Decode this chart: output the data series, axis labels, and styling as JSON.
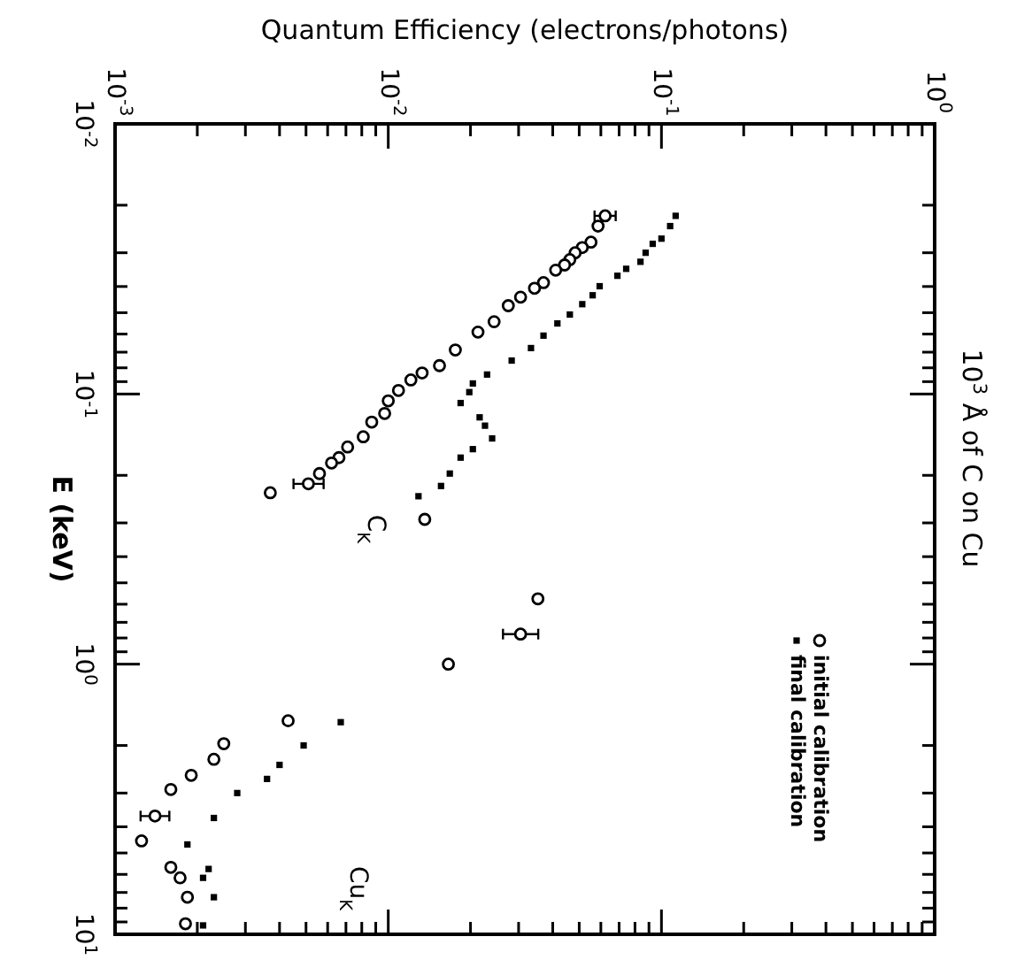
{
  "chart_data": {
    "type": "scatter",
    "xlabel": "Quantum Efficiency (electrons/photons)",
    "ylabel": "E (keV)",
    "log": "xy",
    "xlim": [
      0.001,
      1
    ],
    "ylim": [
      10,
      0.01
    ],
    "yticks": [
      {
        "value": 0.01,
        "label": "10$^{-2}$"
      },
      {
        "value": 0.02,
        "label": null
      },
      {
        "value": 0.03,
        "label": null
      },
      {
        "value": 0.04,
        "label": null
      },
      {
        "value": 0.05,
        "label": null
      },
      {
        "value": 0.06,
        "label": null
      },
      {
        "value": 0.07,
        "label": null
      },
      {
        "value": 0.08,
        "label": null
      },
      {
        "value": 0.09,
        "label": null
      },
      {
        "value": 0.1,
        "label": "10$^{-1}$"
      },
      {
        "value": 0.2,
        "label": null
      },
      {
        "value": 0.3,
        "label": null
      },
      {
        "value": 0.4,
        "label": null
      },
      {
        "value": 0.5,
        "label": null
      },
      {
        "value": 0.6,
        "label": null
      },
      {
        "value": 0.7,
        "label": null
      },
      {
        "value": 0.8,
        "label": null
      },
      {
        "value": 0.9,
        "label": null
      },
      {
        "value": 1,
        "label": "10$^{0}$"
      },
      {
        "value": 2,
        "label": null
      },
      {
        "value": 3,
        "label": null
      },
      {
        "value": 4,
        "label": null
      },
      {
        "value": 5,
        "label": null
      },
      {
        "value": 6,
        "label": null
      },
      {
        "value": 7,
        "label": null
      },
      {
        "value": 8,
        "label": null
      },
      {
        "value": 9,
        "label": null
      },
      {
        "value": 10,
        "label": "10$^{1}$"
      }
    ],
    "xticks": [
      {
        "value": 0.001,
        "label": "10$^{-3}$"
      },
      {
        "value": 0.002,
        "label": null
      },
      {
        "value": 0.003,
        "label": null
      },
      {
        "value": 0.004,
        "label": null
      },
      {
        "value": 0.005,
        "label": null
      },
      {
        "value": 0.006,
        "label": null
      },
      {
        "value": 0.007,
        "label": null
      },
      {
        "value": 0.008,
        "label": null
      },
      {
        "value": 0.009,
        "label": null
      },
      {
        "value": 0.01,
        "label": "10$^{-2}$"
      },
      {
        "value": 0.02,
        "label": null
      },
      {
        "value": 0.03,
        "label": null
      },
      {
        "value": 0.04,
        "label": null
      },
      {
        "value": 0.05,
        "label": null
      },
      {
        "value": 0.06,
        "label": null
      },
      {
        "value": 0.07,
        "label": null
      },
      {
        "value": 0.08,
        "label": null
      },
      {
        "value": 0.09,
        "label": null
      },
      {
        "value": 0.1,
        "label": "10$^{-1}$"
      },
      {
        "value": 0.2,
        "label": null
      },
      {
        "value": 0.3,
        "label": null
      },
      {
        "value": 0.4,
        "label": null
      },
      {
        "value": 0.5,
        "label": null
      },
      {
        "value": 0.6,
        "label": null
      },
      {
        "value": 0.7,
        "label": null
      },
      {
        "value": 0.8,
        "label": null
      },
      {
        "value": 0.9,
        "label": null
      },
      {
        "value": 1,
        "label": "10$^{0}$"
      }
    ],
    "legend": "bottom right",
    "grid": false,
    "series": [
      {
        "name": "initial calibration",
        "color": "#000000",
        "marker": "circle",
        "values": [
          0.0219,
          0.0239,
          0.0274,
          0.0287,
          0.03,
          0.0318,
          0.0333,
          0.0348,
          0.0387,
          0.0406,
          0.0438,
          0.0471,
          0.054,
          0.059,
          0.0687,
          0.0785,
          0.0836,
          0.0887,
          0.097,
          0.106,
          0.118,
          0.127,
          0.144,
          0.157,
          0.172,
          0.18,
          0.197,
          0.215,
          0.232,
          0.291,
          0.573,
          0.774,
          1.0,
          1.62,
          1.97,
          2.25,
          2.58,
          2.91,
          3.65,
          4.51,
          5.65,
          6.18,
          7.29,
          9.14
        ],
        "x": [
          0.0622,
          0.0586,
          0.0552,
          0.0513,
          0.0483,
          0.0462,
          0.0442,
          0.041,
          0.037,
          0.0343,
          0.0305,
          0.0275,
          0.0244,
          0.0213,
          0.0176,
          0.0154,
          0.0133,
          0.0121,
          0.0109,
          0.01,
          0.0097,
          0.0087,
          0.0081,
          0.0071,
          0.0066,
          0.0062,
          0.0056,
          0.0051,
          0.0037,
          0.0136,
          0.0353,
          0.0305,
          0.0166,
          0.0043,
          0.0025,
          0.0023,
          0.0019,
          0.0016,
          0.0014,
          0.00125,
          0.0016,
          0.00173,
          0.00184,
          0.00181
        ],
        "xerrors": [
          [
            0.0569,
            0.068
          ],
          null,
          null,
          null,
          null,
          null,
          null,
          null,
          null,
          null,
          null,
          null,
          null,
          null,
          null,
          null,
          null,
          null,
          null,
          null,
          null,
          null,
          null,
          null,
          null,
          null,
          null,
          [
            0.0045,
            0.0058
          ],
          null,
          null,
          null,
          [
            0.0263,
            0.0354
          ],
          null,
          null,
          null,
          null,
          null,
          null,
          [
            0.00124,
            0.00158
          ],
          null,
          null,
          null,
          null,
          null
        ]
      },
      {
        "name": "final calibration",
        "color": "#000000",
        "marker": "square",
        "values": [
          0.0219,
          0.0239,
          0.0266,
          0.0278,
          0.03,
          0.0324,
          0.0344,
          0.0365,
          0.0399,
          0.0431,
          0.0465,
          0.0508,
          0.0548,
          0.0608,
          0.0676,
          0.0752,
          0.0847,
          0.0914,
          0.0984,
          0.108,
          0.122,
          0.131,
          0.146,
          0.16,
          0.172,
          0.197,
          0.219,
          0.239,
          1.64,
          2.0,
          2.36,
          2.66,
          3.0,
          3.71,
          4.65,
          5.73,
          6.18,
          7.29,
          9.27
        ],
        "x": [
          0.1127,
          0.1076,
          0.1,
          0.0929,
          0.0875,
          0.0838,
          0.0743,
          0.069,
          0.0594,
          0.056,
          0.0513,
          0.0462,
          0.0416,
          0.037,
          0.0333,
          0.0283,
          0.023,
          0.0204,
          0.0198,
          0.0184,
          0.0216,
          0.0226,
          0.024,
          0.0204,
          0.0184,
          0.0168,
          0.0156,
          0.0129,
          0.0067,
          0.0049,
          0.004,
          0.0036,
          0.0028,
          0.0023,
          0.00184,
          0.0022,
          0.0021,
          0.0023,
          0.0021
        ]
      }
    ],
    "annotations": [
      "C$_{K}$",
      "Cu$_{K}$",
      "10$^{3}$ Å of C on Cu"
    ]
  }
}
